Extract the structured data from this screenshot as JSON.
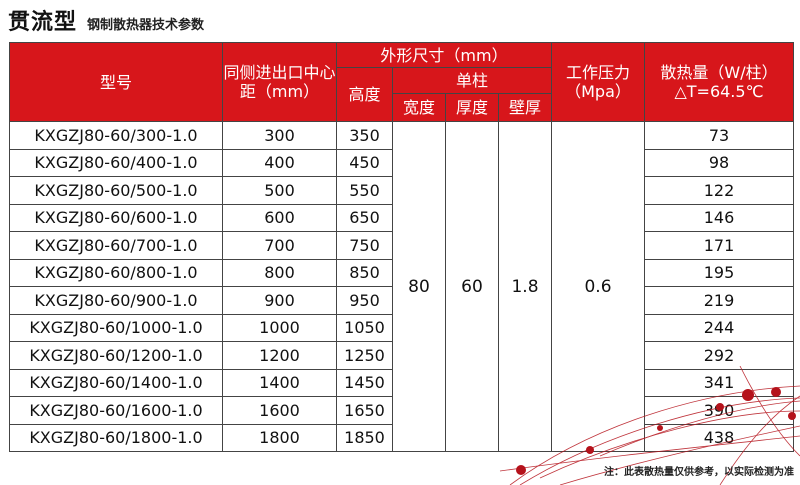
{
  "heading": {
    "main": "贯流型",
    "subtitle": "钢制散热器技术参数"
  },
  "headers": {
    "model": "型号",
    "center_distance": "同侧进出口中心距（mm）",
    "dimensions": "外形尺寸（mm）",
    "height": "高度",
    "single_column": "单柱",
    "width": "宽度",
    "thickness": "厚度",
    "wall_thickness": "壁厚",
    "pressure": "工作压力（Mpa）",
    "heat_output": "散热量（W/柱）△T=64.5℃"
  },
  "shared_values": {
    "width": "80",
    "thickness": "60",
    "wall_thickness": "1.8",
    "pressure": "0.6"
  },
  "rows": [
    {
      "model": "KXGZJ80-60/300-1.0",
      "center": "300",
      "height": "350",
      "heat": "73"
    },
    {
      "model": "KXGZJ80-60/400-1.0",
      "center": "400",
      "height": "450",
      "heat": "98"
    },
    {
      "model": "KXGZJ80-60/500-1.0",
      "center": "500",
      "height": "550",
      "heat": "122"
    },
    {
      "model": "KXGZJ80-60/600-1.0",
      "center": "600",
      "height": "650",
      "heat": "146"
    },
    {
      "model": "KXGZJ80-60/700-1.0",
      "center": "700",
      "height": "750",
      "heat": "171"
    },
    {
      "model": "KXGZJ80-60/800-1.0",
      "center": "800",
      "height": "850",
      "heat": "195"
    },
    {
      "model": "KXGZJ80-60/900-1.0",
      "center": "900",
      "height": "950",
      "heat": "219"
    },
    {
      "model": "KXGZJ80-60/1000-1.0",
      "center": "1000",
      "height": "1050",
      "heat": "244"
    },
    {
      "model": "KXGZJ80-60/1200-1.0",
      "center": "1200",
      "height": "1250",
      "heat": "292"
    },
    {
      "model": "KXGZJ80-60/1400-1.0",
      "center": "1400",
      "height": "1450",
      "heat": "341"
    },
    {
      "model": "KXGZJ80-60/1600-1.0",
      "center": "1600",
      "height": "1650",
      "heat": "390"
    },
    {
      "model": "KXGZJ80-60/1800-1.0",
      "center": "1800",
      "height": "1850",
      "heat": "438"
    }
  ],
  "note": "注：此表散热量仅供参考，以实际检测为准",
  "colors": {
    "header_bg": "#d7161b",
    "header_text": "#ffffff",
    "deco_line": "#b5121b"
  }
}
